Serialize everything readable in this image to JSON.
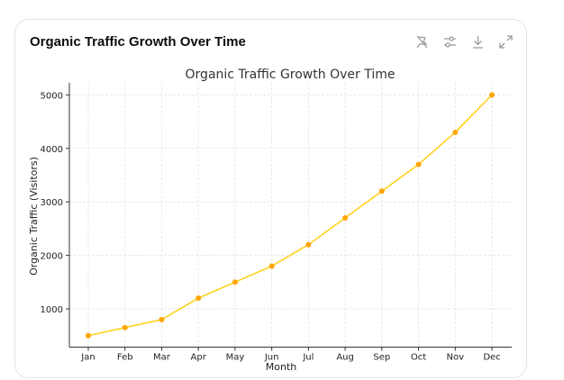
{
  "card": {
    "title": "Organic Traffic Growth Over Time"
  },
  "toolbar_icons": [
    "pin-off-icon",
    "sliders-icon",
    "download-icon",
    "expand-icon"
  ],
  "chart_data": {
    "type": "line",
    "title": "Organic Traffic Growth Over Time",
    "xlabel": "Month",
    "ylabel": "Organic Traffic (Visitors)",
    "categories": [
      "Jan",
      "Feb",
      "Mar",
      "Apr",
      "May",
      "Jun",
      "Jul",
      "Aug",
      "Sep",
      "Oct",
      "Nov",
      "Dec"
    ],
    "values": [
      500,
      650,
      800,
      1200,
      1500,
      1800,
      2200,
      2700,
      3200,
      3700,
      4300,
      5000
    ],
    "yticks": [
      1000,
      2000,
      3000,
      4000,
      5000
    ],
    "ylim": [
      285,
      5225
    ],
    "grid": true,
    "line_color": "#FFD21F",
    "marker_color": "#FFA500"
  }
}
